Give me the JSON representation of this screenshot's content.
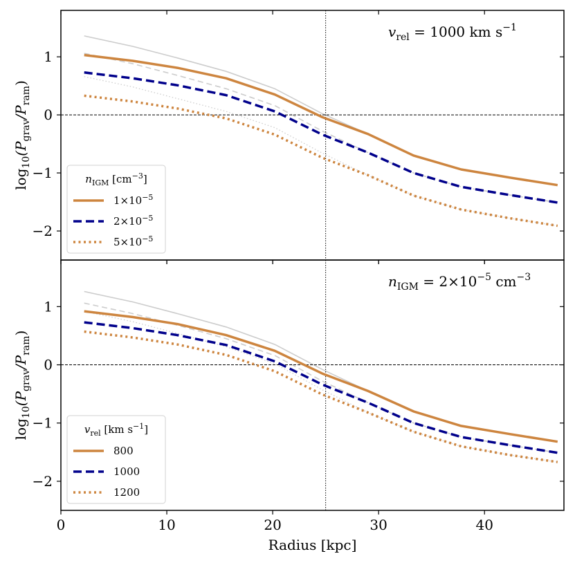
{
  "chart_data": [
    {
      "type": "line",
      "panel": "top",
      "annotation": {
        "var": "v",
        "sub": "rel",
        "text": " = 1000 km s",
        "sup": "−1"
      },
      "ylabel": {
        "pre": "log",
        "sub10": "10",
        "mid": "(P",
        "sub1": "grav",
        "slash": "/P",
        "sub2": "ram",
        "post": ")"
      },
      "ylim": [
        -2.5,
        1.8
      ],
      "yticks": [
        -2,
        -1,
        0,
        1
      ],
      "ytick_labels": [
        "−2",
        "−1",
        "0",
        "1"
      ],
      "xlim": [
        0,
        47.5
      ],
      "xticks": [
        0,
        10,
        20,
        30,
        40
      ],
      "xtick_labels": [],
      "hline": 0,
      "vline": 25,
      "legend": {
        "title_var": "n",
        "title_sub": "IGM",
        "title_rest": " [cm",
        "title_sup": "−3",
        "title_end": "]",
        "placement": "lower-left"
      },
      "x": [
        2.2,
        6.8,
        11.0,
        15.6,
        20.2,
        24.7,
        29.0,
        33.3,
        37.8,
        42.4,
        46.9
      ],
      "series": [
        {
          "name": "1×10⁻⁵",
          "label_mant": "1×10",
          "label_exp": "−5",
          "style": "solid",
          "color": "#cd853f",
          "values": [
            1.03,
            0.93,
            0.81,
            0.63,
            0.35,
            -0.04,
            -0.33,
            -0.7,
            -0.94,
            -1.08,
            -1.21
          ]
        },
        {
          "name": "2×10⁻⁵",
          "label_mant": "2×10",
          "label_exp": "−5",
          "style": "dashed",
          "color": "#00008b",
          "values": [
            0.73,
            0.63,
            0.51,
            0.34,
            0.06,
            -0.34,
            -0.65,
            -1.0,
            -1.24,
            -1.38,
            -1.51
          ]
        },
        {
          "name": "5×10⁻⁵",
          "label_mant": "5×10",
          "label_exp": "−5",
          "style": "dotted",
          "color": "#cd853f",
          "values": [
            0.33,
            0.23,
            0.11,
            -0.06,
            -0.34,
            -0.74,
            -1.04,
            -1.39,
            -1.63,
            -1.78,
            -1.91
          ]
        }
      ],
      "ghost_series": [
        {
          "style": "solid",
          "values": [
            1.36,
            1.18,
            0.98,
            0.75,
            0.45,
            0.02,
            -0.33,
            -0.7,
            -0.94,
            -1.08,
            -1.21
          ]
        },
        {
          "style": "dashed",
          "values": [
            1.06,
            0.88,
            0.68,
            0.45,
            0.16,
            -0.28,
            -0.65,
            -1.0,
            -1.24,
            -1.38,
            -1.51
          ]
        },
        {
          "style": "dotted",
          "values": [
            0.66,
            0.48,
            0.28,
            0.06,
            -0.22,
            -0.66,
            -1.04,
            -1.39,
            -1.63,
            -1.78,
            -1.91
          ]
        }
      ]
    },
    {
      "type": "line",
      "panel": "bottom",
      "annotation": {
        "var": "n",
        "sub": "IGM",
        "text": " = 2×10",
        "sup": "−5",
        "text2": " cm",
        "sup2": "−3"
      },
      "ylabel": {
        "pre": "log",
        "sub10": "10",
        "mid": "(P",
        "sub1": "grav",
        "slash": "/P",
        "sub2": "ram",
        "post": ")"
      },
      "xlabel": "Radius [kpc]",
      "ylim": [
        -2.5,
        1.8
      ],
      "yticks": [
        -2,
        -1,
        0,
        1
      ],
      "ytick_labels": [
        "−2",
        "−1",
        "0",
        "1"
      ],
      "xlim": [
        0,
        47.5
      ],
      "xticks": [
        0,
        10,
        20,
        30,
        40
      ],
      "xtick_labels": [
        "0",
        "10",
        "20",
        "30",
        "40"
      ],
      "hline": 0,
      "vline": 25,
      "legend": {
        "title_var": "v",
        "title_sub": "rel",
        "title_rest": " [km s",
        "title_sup": "−1",
        "title_end": "]",
        "placement": "lower-left"
      },
      "x": [
        2.2,
        6.8,
        11.0,
        15.6,
        20.2,
        24.7,
        29.0,
        33.3,
        37.8,
        42.4,
        46.9
      ],
      "series": [
        {
          "name": "800",
          "label_mant": "800",
          "label_exp": "",
          "style": "solid",
          "color": "#cd853f",
          "values": [
            0.92,
            0.82,
            0.7,
            0.51,
            0.24,
            -0.15,
            -0.45,
            -0.8,
            -1.05,
            -1.19,
            -1.32
          ]
        },
        {
          "name": "1000",
          "label_mant": "1000",
          "label_exp": "",
          "style": "dashed",
          "color": "#00008b",
          "values": [
            0.73,
            0.63,
            0.51,
            0.34,
            0.06,
            -0.34,
            -0.65,
            -1.0,
            -1.24,
            -1.38,
            -1.51
          ]
        },
        {
          "name": "1200",
          "label_mant": "1200",
          "label_exp": "",
          "style": "dotted",
          "color": "#cd853f",
          "values": [
            0.57,
            0.47,
            0.35,
            0.17,
            -0.11,
            -0.51,
            -0.82,
            -1.15,
            -1.4,
            -1.55,
            -1.67
          ]
        }
      ],
      "ghost_series": [
        {
          "style": "solid",
          "values": [
            1.26,
            1.08,
            0.88,
            0.65,
            0.35,
            -0.08,
            -0.45,
            -0.8,
            -1.05,
            -1.19,
            -1.32
          ]
        },
        {
          "style": "dashed",
          "values": [
            1.06,
            0.88,
            0.68,
            0.45,
            0.16,
            -0.28,
            -0.65,
            -1.0,
            -1.24,
            -1.38,
            -1.51
          ]
        },
        {
          "style": "dotted",
          "values": [
            0.92,
            0.74,
            0.54,
            0.31,
            0.02,
            -0.43,
            -0.82,
            -1.15,
            -1.4,
            -1.55,
            -1.67
          ]
        }
      ]
    }
  ]
}
